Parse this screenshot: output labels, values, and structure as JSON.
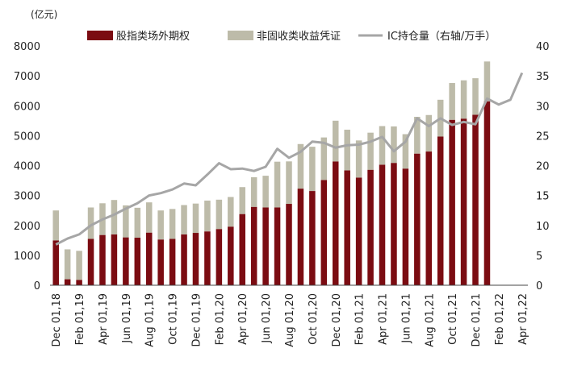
{
  "chart_data": {
    "type": "bar",
    "y_left_unit": "(亿元)",
    "categories": [
      "Dec 01,18",
      "Jan 01,19",
      "Feb 01,19",
      "Mar 01,19",
      "Apr 01,19",
      "May 01,19",
      "Jun 01,19",
      "Jul 01,19",
      "Aug 01,19",
      "Sep 01,19",
      "Oct 01,19",
      "Nov 01,19",
      "Dec 01,19",
      "Jan 01,20",
      "Feb 01,20",
      "Mar 01,20",
      "Apr 01,20",
      "May 01,20",
      "Jun 01,20",
      "Jul 01,20",
      "Aug 01,20",
      "Sep 01,20",
      "Oct 01,20",
      "Nov 01,20",
      "Dec 01,20",
      "Jan 01,21",
      "Feb 01,21",
      "Mar 01,21",
      "Apr 01,21",
      "May 01,21",
      "Jun 01,21",
      "Jul 01,21",
      "Aug 01,21",
      "Sep 01,21",
      "Oct 01,21",
      "Nov 01,21",
      "Dec 01,21",
      "Jan 01,22",
      "Feb 01,22",
      "Mar 01,22",
      "Apr 01,22"
    ],
    "x_tick_labels": [
      "Dec 01,18",
      "Feb 01,19",
      "Apr 01,19",
      "Jun 01,19",
      "Aug 01,19",
      "Oct 01,19",
      "Dec 01,19",
      "Feb 01,20",
      "Apr 01,20",
      "Jun 01,20",
      "Aug 01,20",
      "Oct 01,20",
      "Dec 01,20",
      "Feb 01,21",
      "Apr 01,21",
      "Jun 01,21",
      "Aug 01,21",
      "Oct 01,21",
      "Dec 01,21",
      "Feb 01,22",
      "Apr 01,22"
    ],
    "series": [
      {
        "name": "股指类场外期权",
        "axis": "left",
        "type": "bar",
        "color": "#7b0c12",
        "values": [
          1500,
          200,
          180,
          1550,
          1680,
          1700,
          1600,
          1590,
          1760,
          1530,
          1550,
          1700,
          1750,
          1800,
          1880,
          1960,
          2380,
          2620,
          2600,
          2600,
          2720,
          3230,
          3150,
          3520,
          4140,
          3840,
          3600,
          3860,
          4030,
          4090,
          3900,
          4400,
          4470,
          4970,
          5530,
          5570,
          5700,
          6150,
          null,
          null,
          null
        ]
      },
      {
        "name": "非固收类收益凭证",
        "axis": "left",
        "type": "bar",
        "color": "#bdbba9",
        "values": [
          1000,
          1000,
          970,
          1050,
          1060,
          1150,
          1070,
          1000,
          1010,
          970,
          1000,
          980,
          980,
          1030,
          980,
          990,
          900,
          990,
          1060,
          1530,
          1420,
          1490,
          1480,
          1420,
          1360,
          1360,
          1240,
          1240,
          1290,
          1220,
          1150,
          1230,
          1220,
          1230,
          1230,
          1280,
          1220,
          1330,
          null,
          null,
          null
        ]
      },
      {
        "name": "IC持仓量（右轴/万手）",
        "axis": "right",
        "type": "line",
        "color": "#a6a6a6",
        "values": [
          6.8,
          7.8,
          8.5,
          10.0,
          11.0,
          11.8,
          12.8,
          13.7,
          15.0,
          15.4,
          16.0,
          17.0,
          16.7,
          18.5,
          20.4,
          19.4,
          19.5,
          19.1,
          19.8,
          22.8,
          21.3,
          22.3,
          24.0,
          23.8,
          23.0,
          23.4,
          23.5,
          24.0,
          24.8,
          22.4,
          24.0,
          27.9,
          26.6,
          27.9,
          26.8,
          27.3,
          26.9,
          31.2,
          30.2,
          31.0,
          35.5
        ]
      }
    ],
    "y_left": {
      "min": 0,
      "max": 8000,
      "ticks": [
        0,
        1000,
        2000,
        3000,
        4000,
        5000,
        6000,
        7000,
        8000
      ]
    },
    "y_right": {
      "min": 0,
      "max": 40,
      "ticks": [
        0,
        5,
        10,
        15,
        20,
        25,
        30,
        35,
        40
      ]
    },
    "legend_position": "top",
    "grid": false
  }
}
